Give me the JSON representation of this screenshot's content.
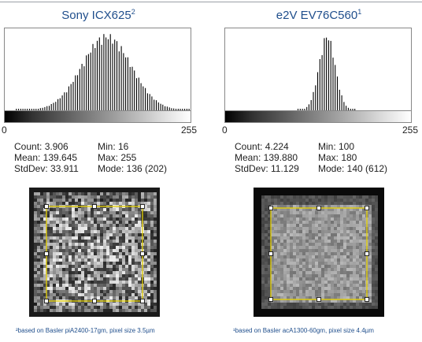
{
  "panels": [
    {
      "title": "Sony ICX625",
      "title_sup": "2",
      "axis_min": "0",
      "axis_max": "255",
      "stats": {
        "count": "Count: 3.906",
        "mean": "Mean: 139.645",
        "stddev": "StdDev: 33.911",
        "min": "Min: 16",
        "max": "Max: 255",
        "mode": "Mode: 136 (202)"
      },
      "footnote": "²based on Basler piA2400-17gm, pixel size 3.5µm",
      "histogram": {
        "mean": 139.645,
        "stddev": 33.911,
        "min": 16,
        "max": 255,
        "mode": 136
      },
      "image": {
        "border_color": "#e6d200",
        "noise": "high"
      }
    },
    {
      "title": "e2V EV76C560",
      "title_sup": "1",
      "axis_min": "0",
      "axis_max": "255",
      "stats": {
        "count": "Count: 4.224",
        "mean": "Mean: 139.880",
        "stddev": "StdDev: 11.129",
        "min": "Min: 100",
        "max": "Max: 180",
        "mode": "Mode: 140 (612)"
      },
      "footnote": "¹based on Basler acA1300-60gm, pixel size 4.4µm",
      "histogram": {
        "mean": 139.88,
        "stddev": 11.129,
        "min": 100,
        "max": 180,
        "mode": 140
      },
      "image": {
        "border_color": "#e6d200",
        "noise": "low"
      }
    }
  ]
}
